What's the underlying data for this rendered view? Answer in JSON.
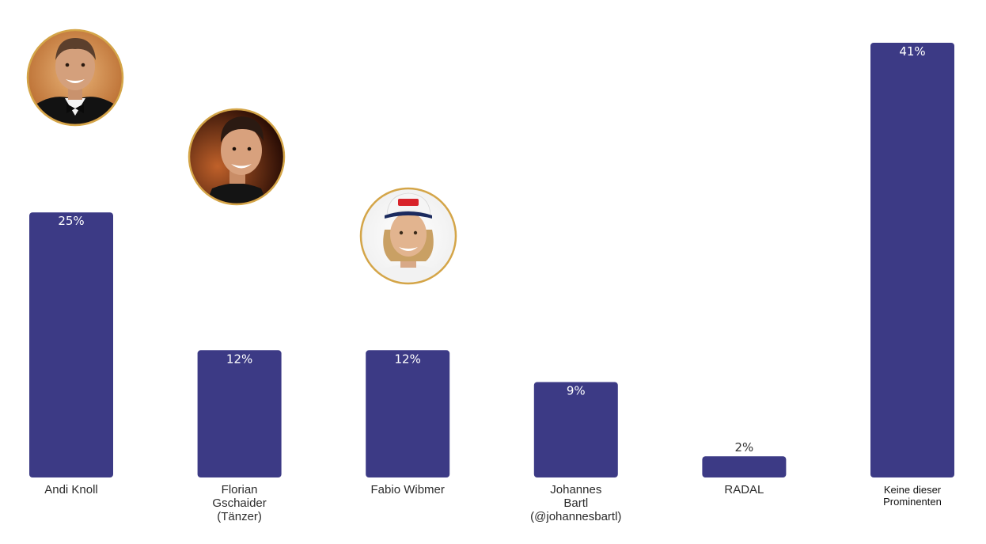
{
  "chart_data": {
    "type": "bar",
    "title": "",
    "xlabel": "",
    "ylabel": "",
    "ylim": [
      0,
      41
    ],
    "grid": false,
    "legend": "none",
    "bar_color": "#3c3a85",
    "photo_ring_color": "#d4a548",
    "categories": [
      [
        "Andi Knoll"
      ],
      [
        "Florian",
        "Gschaider",
        "(Tänzer)"
      ],
      [
        "Fabio Wibmer"
      ],
      [
        "Johannes",
        "Bartl",
        "(@johannesbartl)"
      ],
      [
        "RADAL"
      ],
      [
        "Keine dieser",
        "Prominenten"
      ]
    ],
    "values": [
      25,
      12,
      12,
      9,
      2,
      41
    ],
    "data_labels": [
      "25%",
      "12%",
      "12%",
      "9%",
      "2%",
      "41%"
    ],
    "photos": [
      "Andi Knoll",
      "Florian Gschaider",
      "Fabio Wibmer"
    ]
  }
}
